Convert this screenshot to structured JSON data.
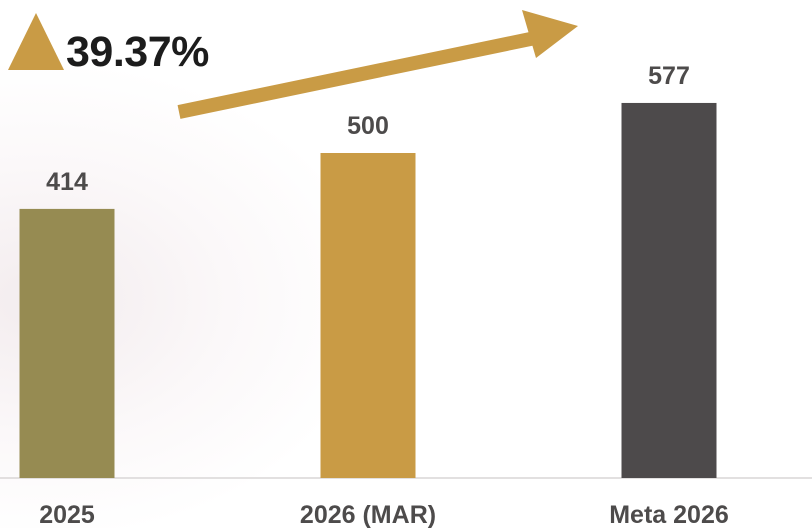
{
  "chart_data": {
    "type": "bar",
    "categories": [
      "2025",
      "2026 (MAR)",
      "Meta 2026"
    ],
    "values": [
      414,
      500,
      577
    ],
    "value_labels": [
      "414",
      "500",
      "577"
    ],
    "colors": [
      "#968b52",
      "#c99b45",
      "#4d4a4b"
    ],
    "title": "",
    "xlabel": "",
    "ylabel": "",
    "ylim": [
      0,
      640
    ],
    "grid": false,
    "legend": "none"
  },
  "annotation": {
    "growth_label": "39.37%",
    "triangle_color": "#c99b45",
    "arrow_color": "#c99b45"
  }
}
